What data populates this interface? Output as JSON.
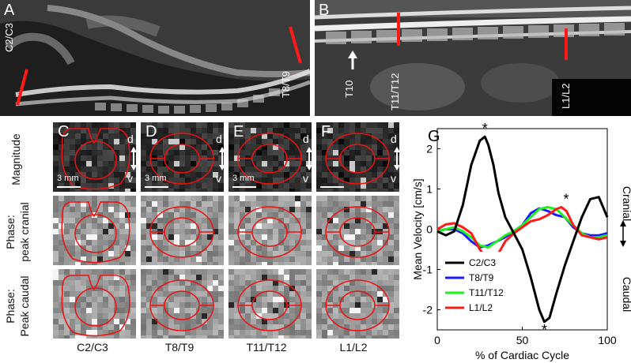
{
  "panels": {
    "A": {
      "letter": "A",
      "labels": [
        "C2/C3",
        "T8/T9"
      ]
    },
    "B": {
      "letter": "B",
      "labels": [
        "T10",
        "T11/T12",
        "L1/L2"
      ]
    }
  },
  "grid": {
    "row_labels": [
      "Magnitude",
      "Phase:\npeak cranial",
      "Phase:\nPeak caudal"
    ],
    "columns": [
      {
        "letter": "C",
        "label": "C2/C3",
        "scale": "3 mm"
      },
      {
        "letter": "D",
        "label": "T8/T9",
        "scale": "3 mm"
      },
      {
        "letter": "E",
        "label": "T11/T12",
        "scale": "3 mm"
      },
      {
        "letter": "F",
        "label": "L1/L2",
        "scale": ""
      }
    ],
    "orientation": {
      "top": "d",
      "bottom": "v"
    }
  },
  "chart_data": {
    "type": "line",
    "panel_letter": "G",
    "xlabel": "% of Cardiac Cycle",
    "ylabel": "Mean Velocity [cm/s]",
    "xlim": [
      0,
      100
    ],
    "ylim": [
      -2.5,
      2.5
    ],
    "xticks": [
      "0",
      "50",
      "100"
    ],
    "yticks": [
      "-2",
      "-1",
      "0",
      "1",
      "2"
    ],
    "right_labels": {
      "top": "Cranial",
      "bottom": "Caudal"
    },
    "legend_position": "bottom-left",
    "series": [
      {
        "name": "C2/C3",
        "color": "#000000",
        "x": [
          0,
          5,
          10,
          15,
          20,
          25,
          28,
          30,
          33,
          36,
          40,
          45,
          50,
          55,
          60,
          63,
          66,
          70,
          75,
          80,
          85,
          90,
          95,
          100
        ],
        "y": [
          -0.05,
          -0.15,
          -0.05,
          0.6,
          1.6,
          2.2,
          2.3,
          2.1,
          1.6,
          0.9,
          0.3,
          -0.1,
          -0.5,
          -1.2,
          -2.0,
          -2.3,
          -2.2,
          -1.6,
          -0.9,
          -0.3,
          0.3,
          0.75,
          0.8,
          0.3
        ]
      },
      {
        "name": "T8/T9",
        "color": "#1a1aff",
        "x": [
          0,
          5,
          10,
          15,
          20,
          25,
          30,
          35,
          40,
          45,
          50,
          55,
          60,
          65,
          70,
          75,
          80,
          85,
          90,
          95,
          100
        ],
        "y": [
          -0.05,
          0.0,
          0.0,
          -0.1,
          -0.3,
          -0.45,
          -0.4,
          -0.3,
          -0.2,
          -0.05,
          0.1,
          0.4,
          0.52,
          0.45,
          0.35,
          0.3,
          0.05,
          -0.1,
          -0.15,
          -0.15,
          -0.1
        ]
      },
      {
        "name": "T11/T12",
        "color": "#22ee22",
        "x": [
          0,
          5,
          10,
          15,
          20,
          25,
          30,
          35,
          40,
          45,
          50,
          55,
          60,
          65,
          70,
          75,
          80,
          85,
          90,
          95,
          100
        ],
        "y": [
          -0.05,
          0.0,
          0.05,
          -0.05,
          -0.2,
          -0.4,
          -0.45,
          -0.3,
          -0.15,
          -0.05,
          0.1,
          0.3,
          0.5,
          0.55,
          0.5,
          0.3,
          0.1,
          -0.1,
          -0.2,
          -0.2,
          -0.15
        ]
      },
      {
        "name": "L1/L2",
        "color": "#ff1a1a",
        "x": [
          0,
          5,
          10,
          15,
          20,
          25,
          30,
          33,
          36,
          40,
          45,
          50,
          55,
          60,
          65,
          70,
          73,
          76,
          80,
          85,
          90,
          95,
          100
        ],
        "y": [
          0.0,
          0.12,
          0.15,
          0.05,
          -0.1,
          -0.5,
          -0.8,
          -0.85,
          -0.6,
          -0.3,
          -0.1,
          0.05,
          0.2,
          0.25,
          0.35,
          0.5,
          0.55,
          0.45,
          0.1,
          -0.15,
          -0.2,
          -0.25,
          -0.2
        ]
      }
    ],
    "annotations": [
      {
        "text": "*",
        "x": 28,
        "y": 2.3,
        "pos": "above"
      },
      {
        "text": "*",
        "x": 63,
        "y": -2.3,
        "pos": "below"
      },
      {
        "text": "*",
        "x": 33,
        "y": -0.85,
        "pos": "below-right"
      },
      {
        "text": "*",
        "x": 73,
        "y": 0.55,
        "pos": "above-right"
      }
    ]
  }
}
